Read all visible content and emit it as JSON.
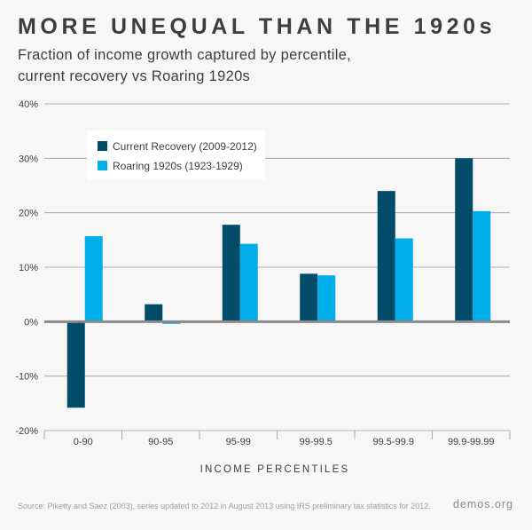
{
  "header": {
    "title": "MORE UNEQUAL THAN THE 1920s",
    "subtitle_line1": "Fraction of income growth captured by percentile,",
    "subtitle_line2": "current recovery vs Roaring 1920s"
  },
  "footer": {
    "source": "Source: Piketty and Saez (2003), series updated to 2012 in August 2013 using IRS preliminary tax statistics for 2012.",
    "brand": "demos.org"
  },
  "colors": {
    "current": "#004c69",
    "roaring": "#00aeea",
    "grid": "#9a9a9a",
    "zero_line": "#8a8a8a",
    "text": "#3d3d3d"
  },
  "chart_data": {
    "type": "bar",
    "title": "MORE UNEQUAL THAN THE 1920s",
    "subtitle": "Fraction of income growth captured by percentile, current recovery vs Roaring 1920s",
    "xlabel": "INCOME PERCENTILES",
    "ylabel": "",
    "categories": [
      "0-90",
      "90-95",
      "95-99",
      "99-99.5",
      "99.5-99.9",
      "99.9-99.99"
    ],
    "series": [
      {
        "name": "Current Recovery (2009-2012)",
        "values": [
          -15.8,
          3.2,
          17.8,
          8.8,
          24.0,
          30.0
        ]
      },
      {
        "name": "Roaring 1920s (1923-1929)",
        "values": [
          15.7,
          -0.4,
          14.3,
          8.5,
          15.3,
          20.3
        ]
      }
    ],
    "ylim": [
      -20,
      40
    ],
    "yticks": [
      -20,
      -10,
      0,
      10,
      20,
      30,
      40
    ],
    "ytick_labels": [
      "-20%",
      "-10%",
      "0%",
      "10%",
      "20%",
      "30%",
      "40%"
    ],
    "grid": true,
    "legend_position": "top-left"
  }
}
